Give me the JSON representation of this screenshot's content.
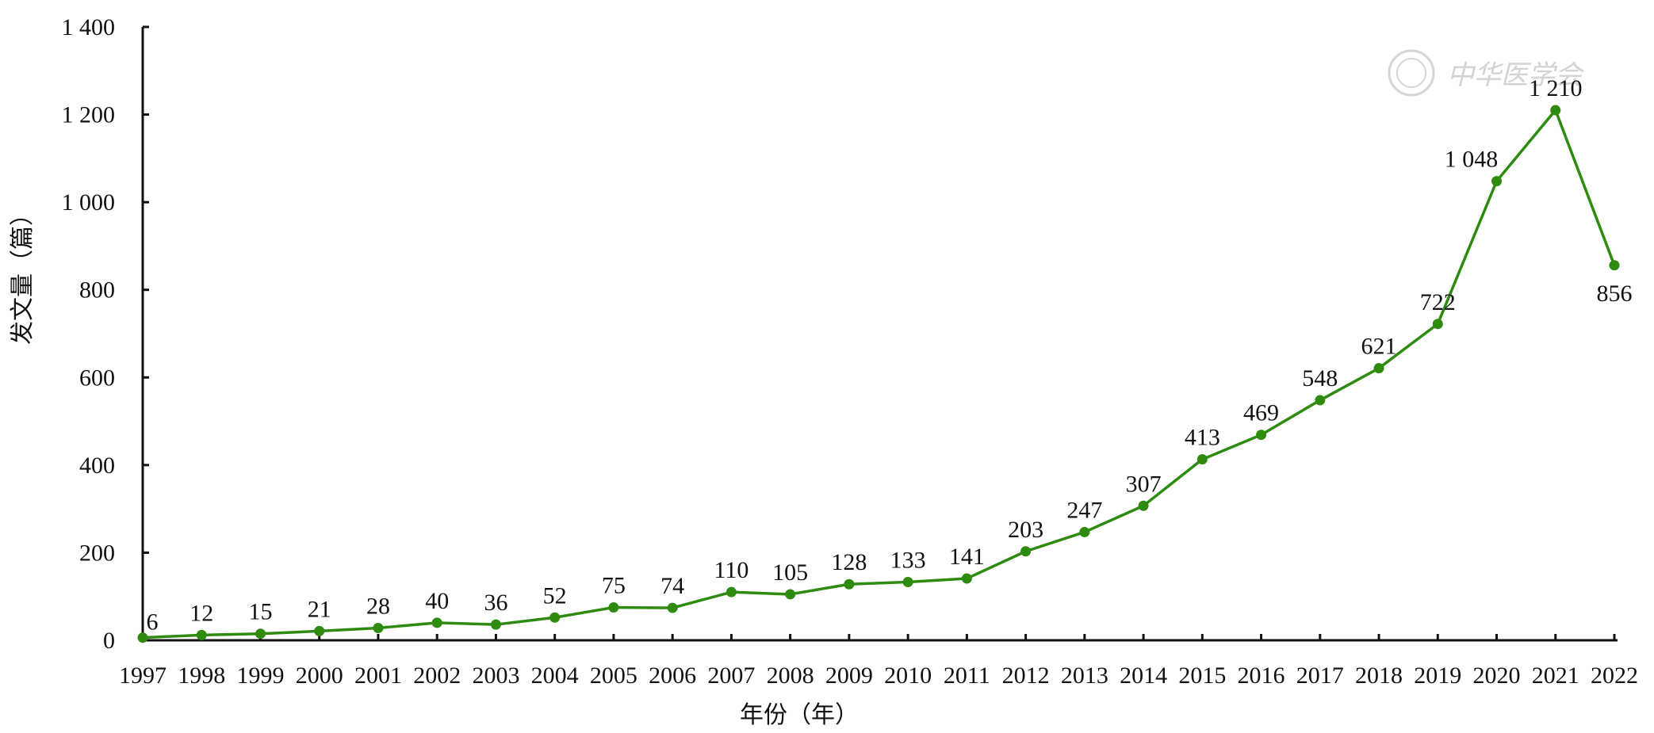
{
  "chart_data": {
    "type": "line",
    "x": [
      1997,
      1998,
      1999,
      2000,
      2001,
      2002,
      2003,
      2004,
      2005,
      2006,
      2007,
      2008,
      2009,
      2010,
      2011,
      2012,
      2013,
      2014,
      2015,
      2016,
      2017,
      2018,
      2019,
      2020,
      2021,
      2022
    ],
    "series": [
      {
        "values": [
          6,
          12,
          15,
          21,
          28,
          40,
          36,
          52,
          75,
          74,
          110,
          105,
          128,
          133,
          141,
          203,
          247,
          307,
          413,
          469,
          548,
          621,
          722,
          1048,
          1210,
          856
        ],
        "color": "#2e8b10"
      }
    ],
    "x_tick_labels": [
      "1997",
      "1998",
      "1999",
      "2000",
      "2001",
      "2002",
      "2003",
      "2004",
      "2005",
      "2006",
      "2007",
      "2008",
      "2009",
      "2010",
      "2011",
      "2012",
      "2013",
      "2014",
      "2015",
      "2016",
      "2017",
      "2018",
      "2019",
      "2020",
      "2021",
      "2022"
    ],
    "y_ticks": [
      0,
      200,
      400,
      600,
      800,
      1000,
      1200,
      1400
    ],
    "y_tick_labels": [
      "0",
      "200",
      "400",
      "600",
      "800",
      "1 000",
      "1 200",
      "1 400"
    ],
    "data_labels": [
      "6",
      "12",
      "15",
      "21",
      "28",
      "40",
      "36",
      "52",
      "75",
      "74",
      "110",
      "105",
      "128",
      "133",
      "141",
      "203",
      "247",
      "307",
      "413",
      "469",
      "548",
      "621",
      "722",
      "1 048",
      "1 210",
      "856"
    ],
    "xlabel": "年份（年）",
    "ylabel": "发文量（篇）",
    "ylim": [
      0,
      1400
    ],
    "grid": false,
    "legend": "none",
    "watermark": "中华医学会"
  }
}
